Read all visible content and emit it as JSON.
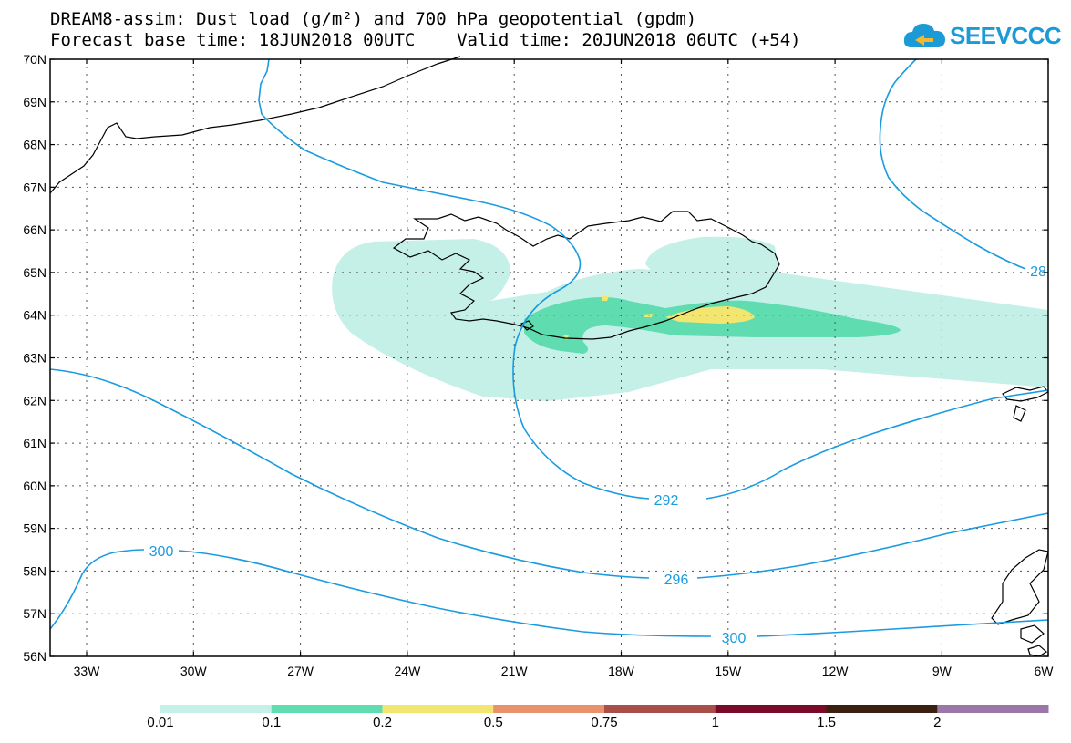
{
  "title": {
    "line1": "DREAM8-assim: Dust load (g/m²) and 700 hPa geopotential (gpdm)",
    "line2": "Forecast base time: 18JUN2018 00UTC    Valid time: 20JUN2018 06UTC (+54)"
  },
  "logo": {
    "text": "SEEVCCC",
    "color": "#1b9ad6"
  },
  "axes": {
    "lat_labels": [
      "70N",
      "69N",
      "68N",
      "67N",
      "66N",
      "65N",
      "64N",
      "63N",
      "62N",
      "61N",
      "60N",
      "59N",
      "58N",
      "57N",
      "56N"
    ],
    "lon_labels": [
      "33W",
      "30W",
      "27W",
      "24W",
      "21W",
      "18W",
      "15W",
      "12W",
      "9W",
      "6W"
    ]
  },
  "contours": {
    "color": "#1a9be0",
    "labels": [
      "292",
      "296",
      "300",
      "300",
      "28"
    ]
  },
  "colorbar": {
    "labels": [
      "0.01",
      "0.1",
      "0.2",
      "0.5",
      "0.75",
      "1",
      "1.5",
      "2"
    ],
    "colors": [
      "#c4f0e8",
      "#5fdcb0",
      "#f2e670",
      "#e8916a",
      "#a94f4a",
      "#7a0a2a",
      "#3b2010",
      "#9b77a8"
    ]
  },
  "dust_colors": {
    "light": "#c4f0e8",
    "medium": "#5fdcb0",
    "high": "#f2e670"
  }
}
